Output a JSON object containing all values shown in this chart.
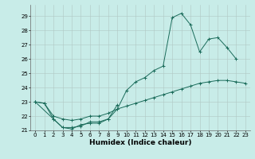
{
  "xlabel": "Humidex (Indice chaleur)",
  "background_color": "#c8ece8",
  "grid_color": "#b0c8c4",
  "line_color": "#1a6b5a",
  "xlim": [
    -0.5,
    23.5
  ],
  "ylim": [
    21.0,
    29.8
  ],
  "yticks": [
    21,
    22,
    23,
    24,
    25,
    26,
    27,
    28,
    29
  ],
  "xticks": [
    0,
    1,
    2,
    3,
    4,
    5,
    6,
    7,
    8,
    9,
    10,
    11,
    12,
    13,
    14,
    15,
    16,
    17,
    18,
    19,
    20,
    21,
    22,
    23
  ],
  "series": [
    [
      23.0,
      22.9,
      21.8,
      21.2,
      21.1,
      21.4,
      21.5,
      21.5,
      21.8,
      22.5,
      23.8,
      24.4,
      24.7,
      25.2,
      25.5,
      28.9,
      29.2,
      28.4,
      26.5,
      27.4,
      27.5,
      26.8,
      26.0,
      null
    ],
    [
      23.0,
      null,
      21.8,
      21.2,
      21.2,
      21.3,
      21.6,
      21.6,
      21.8,
      22.8,
      null,
      null,
      null,
      null,
      null,
      null,
      null,
      null,
      null,
      null,
      null,
      null,
      null,
      null
    ],
    [
      23.0,
      22.9,
      22.0,
      21.8,
      21.7,
      21.8,
      22.0,
      22.0,
      22.2,
      22.5,
      22.7,
      22.9,
      23.1,
      23.3,
      23.5,
      23.7,
      23.9,
      24.1,
      24.3,
      24.4,
      24.5,
      24.5,
      24.4,
      24.3
    ]
  ]
}
